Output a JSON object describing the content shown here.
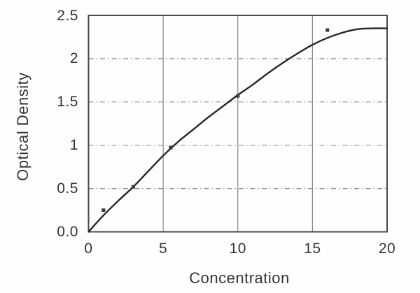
{
  "chart_data": {
    "type": "line",
    "title": "",
    "xlabel": "Concentration",
    "ylabel": "Optical Density",
    "xlim": [
      0,
      20
    ],
    "ylim": [
      0,
      2.5
    ],
    "grid": {
      "vertical_style": "solid",
      "horizontal_style": "dash-dot",
      "legend": "none"
    },
    "x_ticks": [
      {
        "v": 0,
        "label": "0"
      },
      {
        "v": 5,
        "label": "5"
      },
      {
        "v": 10,
        "label": "10"
      },
      {
        "v": 15,
        "label": "15"
      },
      {
        "v": 20,
        "label": "20"
      }
    ],
    "y_ticks": [
      {
        "v": 0,
        "label": "0.0"
      },
      {
        "v": 0.5,
        "label": "0.5"
      },
      {
        "v": 1,
        "label": "1"
      },
      {
        "v": 1.5,
        "label": "1.5"
      },
      {
        "v": 2,
        "label": "2"
      },
      {
        "v": 2.5,
        "label": "2.5"
      }
    ],
    "x_gridlines": [
      5,
      10,
      15
    ],
    "y_gridlines": [
      0.5,
      1,
      1.5,
      2
    ],
    "series": [
      {
        "name": "fitted curve",
        "type": "line",
        "x": [
          0,
          1,
          2,
          3,
          4,
          5,
          6,
          7,
          8,
          9,
          10,
          11,
          12,
          13,
          14,
          15,
          16,
          17,
          18,
          19,
          20
        ],
        "y": [
          0,
          0.19,
          0.36,
          0.52,
          0.7,
          0.88,
          1.04,
          1.18,
          1.32,
          1.45,
          1.58,
          1.7,
          1.83,
          1.95,
          2.06,
          2.16,
          2.24,
          2.3,
          2.34,
          2.35,
          2.35
        ]
      },
      {
        "name": "measured points",
        "type": "scatter",
        "marker": "square",
        "points": [
          [
            1,
            0.25
          ],
          [
            3,
            0.52
          ],
          [
            5.5,
            0.97
          ],
          [
            10,
            1.57
          ],
          [
            16,
            2.33
          ]
        ]
      }
    ],
    "colors": {
      "frame": "#4a4a4a",
      "curve": "#262626",
      "marker": "#3a3a3a",
      "grid_vertical": "#848484",
      "grid_horizontal": "#8f8f8f",
      "text": "#343434",
      "background": "#fefefe"
    }
  }
}
